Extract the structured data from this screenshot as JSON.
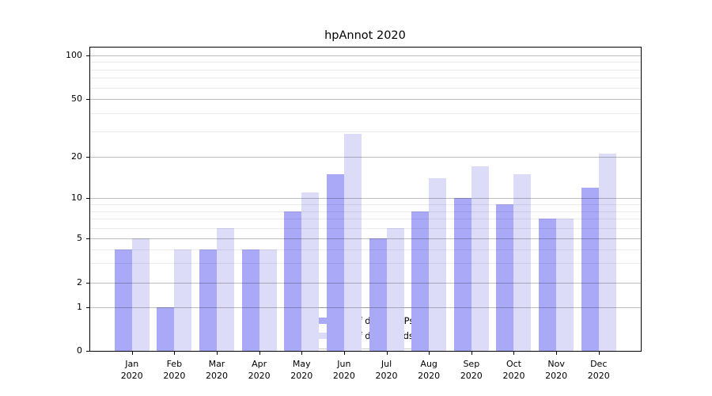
{
  "title": "hpAnnot 2020",
  "colors": {
    "ips": "#a9a9f7",
    "downloads": "#dcdcf9",
    "major_grid": "rgba(0,0,0,0.25)",
    "minor_grid": "rgba(0,0,0,0.08)",
    "axis": "#000000",
    "legend_border": "#cccccc"
  },
  "legend": {
    "entries": [
      {
        "label": "Nb of distinct IPs",
        "series": "ips"
      },
      {
        "label": "Nb of downloads",
        "series": "downloads"
      }
    ]
  },
  "chart_data": {
    "type": "bar",
    "title": "hpAnnot 2020",
    "categories": [
      "Jan 2020",
      "Feb 2020",
      "Mar 2020",
      "Apr 2020",
      "May 2020",
      "Jun 2020",
      "Jul 2020",
      "Aug 2020",
      "Sep 2020",
      "Oct 2020",
      "Nov 2020",
      "Dec 2020"
    ],
    "x_tick_labels": [
      {
        "month": "Jan",
        "year": "2020"
      },
      {
        "month": "Feb",
        "year": "2020"
      },
      {
        "month": "Mar",
        "year": "2020"
      },
      {
        "month": "Apr",
        "year": "2020"
      },
      {
        "month": "May",
        "year": "2020"
      },
      {
        "month": "Jun",
        "year": "2020"
      },
      {
        "month": "Jul",
        "year": "2020"
      },
      {
        "month": "Aug",
        "year": "2020"
      },
      {
        "month": "Sep",
        "year": "2020"
      },
      {
        "month": "Oct",
        "year": "2020"
      },
      {
        "month": "Nov",
        "year": "2020"
      },
      {
        "month": "Dec",
        "year": "2020"
      }
    ],
    "series": [
      {
        "name": "Nb of distinct IPs",
        "color": "#a9a9f7",
        "values": [
          4,
          1,
          4,
          4,
          8,
          15,
          5,
          8,
          10,
          9,
          7,
          12
        ]
      },
      {
        "name": "Nb of downloads",
        "color": "#dcdcf9",
        "values": [
          5,
          4,
          6,
          4,
          11,
          29,
          6,
          14,
          17,
          15,
          7,
          21
        ]
      }
    ],
    "xlabel": "",
    "ylabel": "",
    "yscale": "symlog",
    "y_ticks": [
      0,
      1,
      2,
      5,
      10,
      20,
      50,
      100
    ],
    "y_minor_gridlines": [
      3,
      4,
      6,
      7,
      8,
      9,
      30,
      40,
      60,
      70,
      80,
      90
    ],
    "ylim": [
      0,
      115
    ],
    "grid": "both",
    "legend_position": "lower center"
  }
}
